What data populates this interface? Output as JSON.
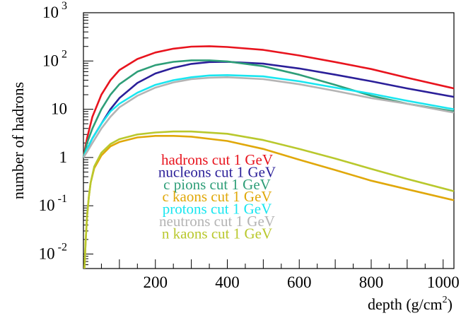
{
  "chart_data": {
    "type": "line",
    "title": "",
    "xlabel": "depth (g/cm",
    "xlabel_superscript": "2",
    "xlabel_close": ")",
    "ylabel": "number of  hadrons",
    "x_scale": "linear",
    "y_scale": "log",
    "xlim": [
      0,
      1030
    ],
    "ylim": [
      0.005,
      1000
    ],
    "grid": false,
    "legend_position": "lower-left inside plot",
    "x_ticks": [
      200,
      400,
      600,
      800,
      1000
    ],
    "x_tick_labels": [
      "200",
      "400",
      "600",
      "800",
      "1000"
    ],
    "y_ticks": [
      {
        "value": 0.01,
        "base": "10",
        "exp": "-2"
      },
      {
        "value": 0.1,
        "base": "10",
        "exp": "-1"
      },
      {
        "value": 1,
        "base": "1",
        "exp": ""
      },
      {
        "value": 10,
        "base": "10",
        "exp": ""
      },
      {
        "value": 100,
        "base": "10",
        "exp": "2"
      },
      {
        "value": 1000,
        "base": "10",
        "exp": "3"
      }
    ],
    "series": [
      {
        "name": "hadrons  cut 1 GeV",
        "color": "#e8141e",
        "x": [
          0,
          10,
          25,
          50,
          75,
          100,
          150,
          200,
          250,
          300,
          350,
          400,
          500,
          600,
          700,
          800,
          900,
          1030
        ],
        "y": [
          1.0,
          2.5,
          7,
          20,
          40,
          65,
          110,
          150,
          180,
          198,
          202,
          195,
          170,
          130,
          95,
          68,
          45,
          27
        ]
      },
      {
        "name": "nucleons  cut 1 GeV",
        "color": "#2b1f99",
        "x": [
          0,
          10,
          25,
          50,
          75,
          100,
          150,
          200,
          250,
          300,
          350,
          400,
          500,
          600,
          700,
          800,
          900,
          1030
        ],
        "y": [
          1.0,
          1.5,
          2.5,
          5,
          10,
          17,
          35,
          55,
          72,
          87,
          95,
          96,
          88,
          70,
          52,
          38,
          27,
          18
        ]
      },
      {
        "name": "c pions  cut 1 GeV",
        "color": "#2e9e78",
        "x": [
          0,
          10,
          25,
          50,
          75,
          100,
          150,
          200,
          250,
          300,
          350,
          400,
          500,
          600,
          700,
          800,
          900,
          1030
        ],
        "y": [
          1.0,
          2.0,
          4,
          10,
          20,
          33,
          60,
          82,
          96,
          103,
          103,
          98,
          78,
          52,
          32,
          19,
          13,
          9
        ]
      },
      {
        "name": "c kaons  cut 1 GeV",
        "color": "#e0a80a",
        "x": [
          3,
          6,
          10,
          15,
          20,
          30,
          50,
          75,
          100,
          150,
          200,
          250,
          300,
          400,
          500,
          600,
          700,
          800,
          900,
          1030
        ],
        "y": [
          0.005,
          0.018,
          0.06,
          0.15,
          0.3,
          0.6,
          1.1,
          1.7,
          2.1,
          2.6,
          2.8,
          2.8,
          2.7,
          2.2,
          1.5,
          0.9,
          0.55,
          0.33,
          0.22,
          0.13
        ]
      },
      {
        "name": "protons  cut 1 GeV",
        "color": "#19e6f0",
        "x": [
          0,
          10,
          25,
          50,
          75,
          100,
          150,
          200,
          250,
          300,
          350,
          400,
          500,
          600,
          700,
          800,
          900,
          1030
        ],
        "y": [
          1.0,
          1.5,
          2.5,
          5,
          9,
          13,
          22,
          32,
          40,
          46,
          50,
          51,
          48,
          38,
          28,
          21,
          15,
          10
        ]
      },
      {
        "name": "neutrons  cut 1 GeV",
        "color": "#b4b4b4",
        "x": [
          0,
          10,
          25,
          50,
          75,
          100,
          150,
          200,
          250,
          300,
          350,
          400,
          500,
          600,
          700,
          800,
          900,
          1030
        ],
        "y": [
          1.0,
          1.3,
          2.0,
          4,
          7,
          11,
          19,
          28,
          36,
          42,
          45,
          46,
          42,
          33,
          24,
          17,
          13,
          8.5
        ]
      },
      {
        "name": "n kaons  cut 1 GeV",
        "color": "#b9c82d",
        "x": [
          3,
          6,
          10,
          15,
          20,
          30,
          50,
          75,
          100,
          150,
          200,
          250,
          300,
          400,
          500,
          600,
          700,
          800,
          900,
          1030
        ],
        "y": [
          0.005,
          0.018,
          0.06,
          0.15,
          0.3,
          0.65,
          1.25,
          1.9,
          2.4,
          3.0,
          3.3,
          3.45,
          3.45,
          3.1,
          2.3,
          1.5,
          0.95,
          0.58,
          0.36,
          0.2
        ]
      }
    ]
  }
}
